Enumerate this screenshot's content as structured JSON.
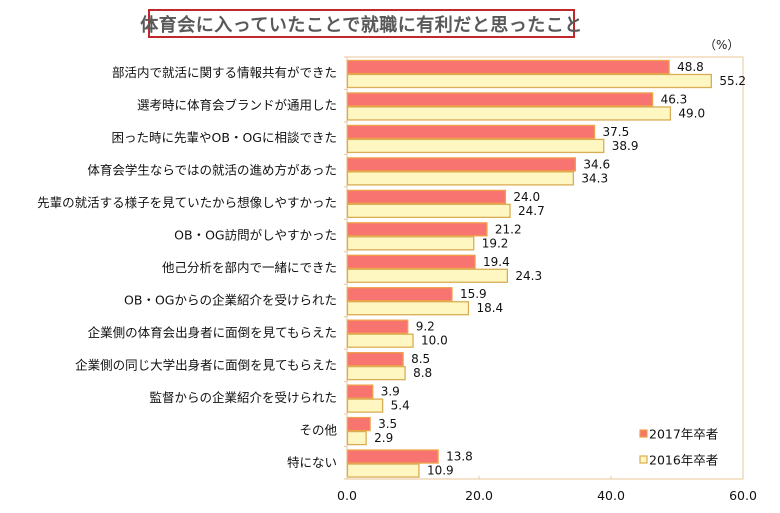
{
  "chart_data": {
    "type": "bar",
    "orientation": "horizontal",
    "title": "体育会に入っていたことで就職に有利だと思ったこと",
    "unit_label": "（%）",
    "xlabel": "",
    "ylabel": "",
    "xlim": [
      0,
      60
    ],
    "x_ticks": [
      "0.0",
      "20.0",
      "40.0",
      "60.0"
    ],
    "x_tick_values": [
      0,
      20,
      40,
      60
    ],
    "grid": false,
    "legend_position": "bottom-right",
    "categories": [
      "部活内で就活に関する情報共有ができた",
      "選考時に体育会ブランドが通用した",
      "困った時に先輩やOB・OGに相談できた",
      "体育会学生ならではの就活の進め方があった",
      "先輩の就活する様子を見ていたから想像しやすかった",
      "OB・OG訪問がしやすかった",
      "他己分析を部内で一緒にできた",
      "OB・OGからの企業紹介を受けられた",
      "企業側の体育会出身者に面倒を見てもらえた",
      "企業側の同じ大学出身者に面倒を見てもらえた",
      "監督からの企業紹介を受けられた",
      "その他",
      "特にない"
    ],
    "series": [
      {
        "name": "2017年卒者",
        "fill": "#f77470",
        "stroke": "#f0a048",
        "values": [
          48.8,
          46.3,
          37.5,
          34.6,
          24.0,
          21.2,
          19.4,
          15.9,
          9.2,
          8.5,
          3.9,
          3.5,
          13.8
        ],
        "labels": [
          "48.8",
          "46.3",
          "37.5",
          "34.6",
          "24.0",
          "21.2",
          "19.4",
          "15.9",
          "9.2",
          "8.5",
          "3.9",
          "3.5",
          "13.8"
        ]
      },
      {
        "name": "2016年卒者",
        "fill": "#fff7c2",
        "stroke": "#d9ad55",
        "values": [
          55.2,
          49.0,
          38.9,
          34.3,
          24.7,
          19.2,
          24.3,
          18.4,
          10.0,
          8.8,
          5.4,
          2.9,
          10.9
        ],
        "labels": [
          "55.2",
          "49.0",
          "38.9",
          "34.3",
          "24.7",
          "19.2",
          "24.3",
          "18.4",
          "10.0",
          "8.8",
          "5.4",
          "2.9",
          "10.9"
        ]
      }
    ]
  },
  "colors": {
    "title_border": "#c0282d",
    "plot_border": "#e9c79a"
  }
}
